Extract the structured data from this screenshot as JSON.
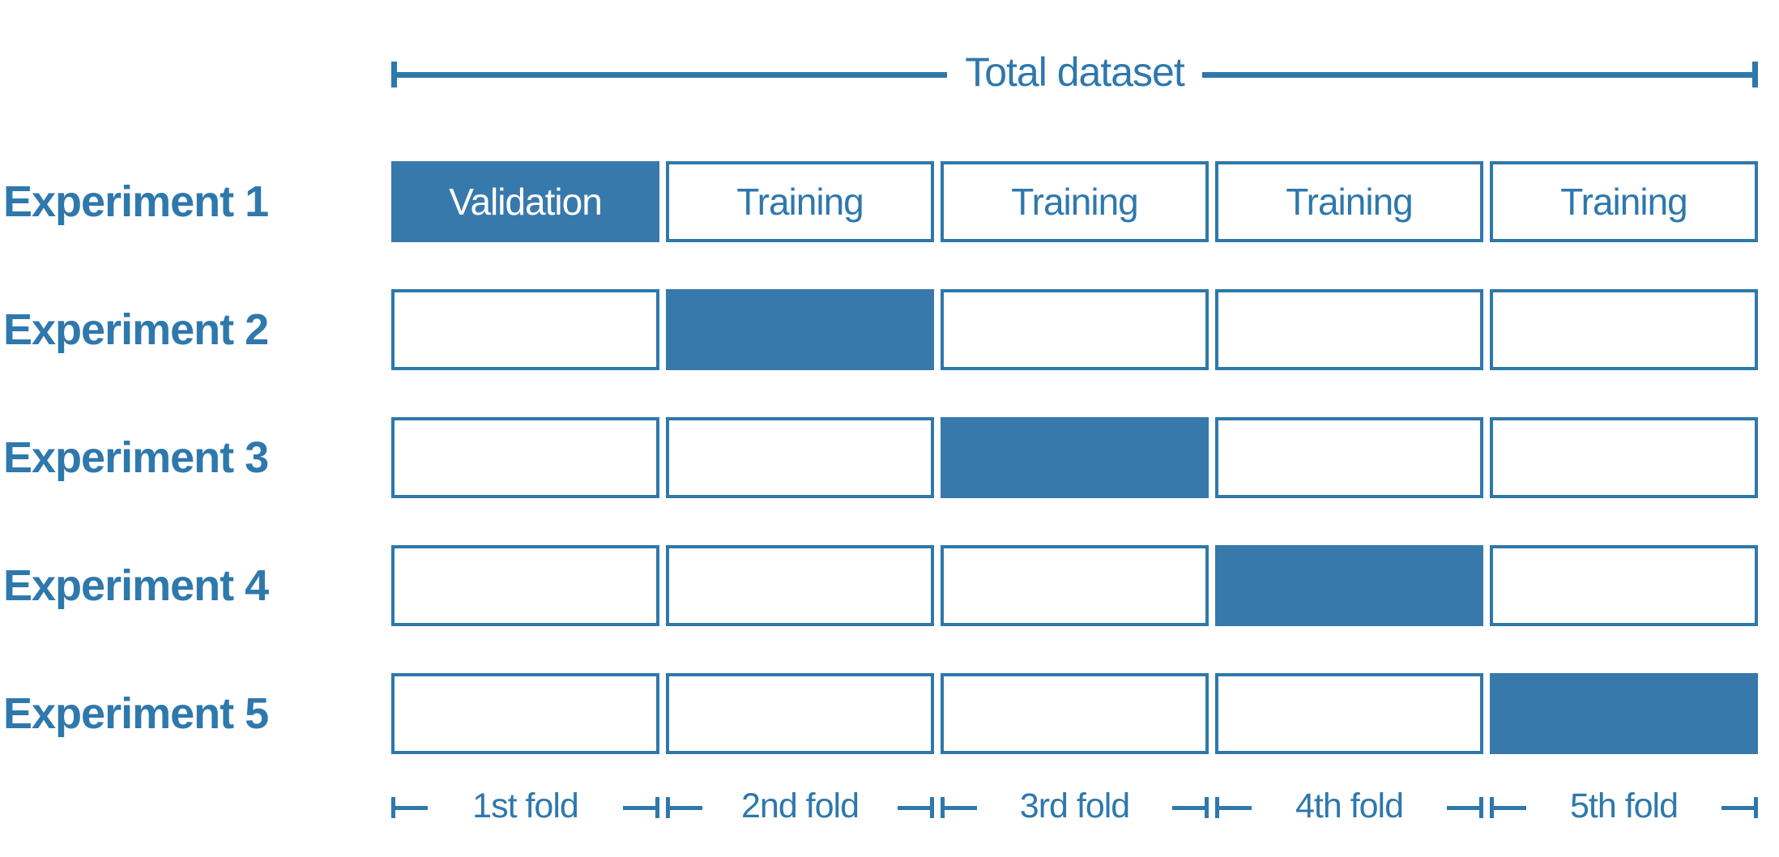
{
  "colors": {
    "accent_blue": "#2E78AC",
    "fill_blue": "#3879AB",
    "text_blue": "#2E78AC",
    "white": "#FFFFFF"
  },
  "header": {
    "label": "Total dataset"
  },
  "experiments": [
    {
      "label": "Experiment 1",
      "cells": [
        {
          "text": "Validation",
          "filled": true
        },
        {
          "text": "Training",
          "filled": false
        },
        {
          "text": "Training",
          "filled": false
        },
        {
          "text": "Training",
          "filled": false
        },
        {
          "text": "Training",
          "filled": false
        }
      ]
    },
    {
      "label": "Experiment 2",
      "cells": [
        {
          "text": "",
          "filled": false
        },
        {
          "text": "",
          "filled": true
        },
        {
          "text": "",
          "filled": false
        },
        {
          "text": "",
          "filled": false
        },
        {
          "text": "",
          "filled": false
        }
      ]
    },
    {
      "label": "Experiment 3",
      "cells": [
        {
          "text": "",
          "filled": false
        },
        {
          "text": "",
          "filled": false
        },
        {
          "text": "",
          "filled": true
        },
        {
          "text": "",
          "filled": false
        },
        {
          "text": "",
          "filled": false
        }
      ]
    },
    {
      "label": "Experiment 4",
      "cells": [
        {
          "text": "",
          "filled": false
        },
        {
          "text": "",
          "filled": false
        },
        {
          "text": "",
          "filled": false
        },
        {
          "text": "",
          "filled": true
        },
        {
          "text": "",
          "filled": false
        }
      ]
    },
    {
      "label": "Experiment 5",
      "cells": [
        {
          "text": "",
          "filled": false
        },
        {
          "text": "",
          "filled": false
        },
        {
          "text": "",
          "filled": false
        },
        {
          "text": "",
          "filled": false
        },
        {
          "text": "",
          "filled": true
        }
      ]
    }
  ],
  "folds": [
    {
      "label": "1st fold"
    },
    {
      "label": "2nd fold"
    },
    {
      "label": "3rd fold"
    },
    {
      "label": "4th fold"
    },
    {
      "label": "5th fold"
    }
  ]
}
